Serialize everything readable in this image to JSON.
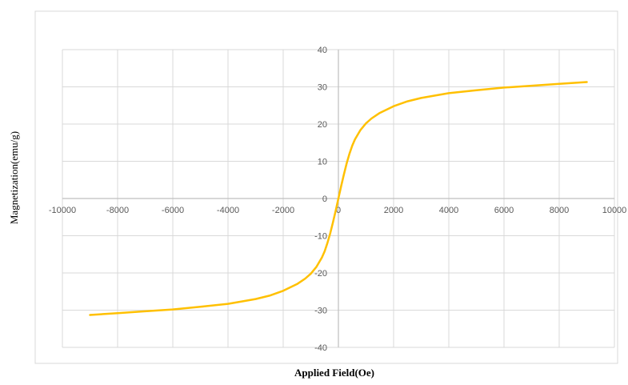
{
  "chart_data": {
    "type": "line",
    "title": "",
    "xlabel": "Applied Field(Oe)",
    "ylabel": "Magnetization(emu/g)",
    "xlim": [
      -10000,
      10000
    ],
    "ylim": [
      -40,
      40
    ],
    "xticks": [
      -10000,
      -8000,
      -6000,
      -4000,
      -2000,
      0,
      2000,
      4000,
      6000,
      8000,
      10000
    ],
    "yticks": [
      -40,
      -30,
      -20,
      -10,
      0,
      10,
      20,
      30,
      40
    ],
    "xtick_labels": [
      "-10000",
      "-8000",
      "-6000",
      "-4000",
      "-2000",
      "0",
      "2000",
      "4000",
      "6000",
      "8000",
      "10000"
    ],
    "ytick_labels": [
      "-40",
      "-30",
      "-20",
      "-10",
      "0",
      "10",
      "20",
      "30",
      "40"
    ],
    "grid": true,
    "legend": "none",
    "series": [
      {
        "color": "#FFC000",
        "x": [
          -9000,
          -8000,
          -7000,
          -6000,
          -5000,
          -4000,
          -3000,
          -2500,
          -2000,
          -1500,
          -1200,
          -1000,
          -800,
          -600,
          -500,
          -400,
          -300,
          -200,
          -100,
          0,
          100,
          200,
          300,
          400,
          500,
          600,
          800,
          1000,
          1200,
          1500,
          2000,
          2500,
          3000,
          4000,
          5000,
          6000,
          7000,
          8000,
          9000
        ],
        "y": [
          -31.3,
          -30.8,
          -30.3,
          -29.8,
          -29.1,
          -28.3,
          -27.0,
          -26.1,
          -24.8,
          -23.0,
          -21.5,
          -20.2,
          -18.4,
          -15.9,
          -14.2,
          -12.0,
          -9.5,
          -6.5,
          -3.3,
          0,
          3.3,
          6.5,
          9.5,
          12.0,
          14.2,
          15.9,
          18.4,
          20.2,
          21.5,
          23.0,
          24.8,
          26.1,
          27.0,
          28.3,
          29.1,
          29.8,
          30.3,
          30.8,
          31.3
        ]
      }
    ]
  }
}
